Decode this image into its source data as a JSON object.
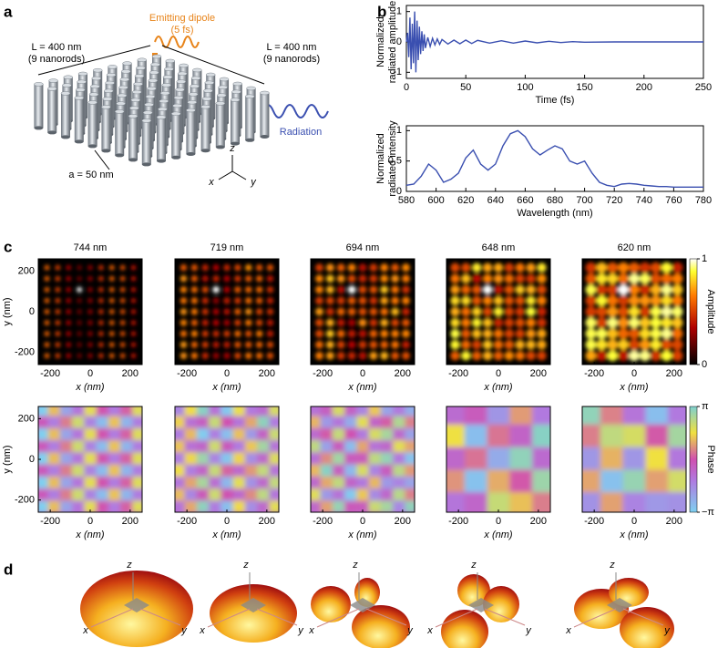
{
  "panel_labels": [
    "a",
    "b",
    "c",
    "d"
  ],
  "panel_a": {
    "dipole_label": [
      "Emitting dipole",
      "(5 fs)"
    ],
    "left_size": [
      "L = 400 nm",
      "(9 nanorods)"
    ],
    "right_size": [
      "L = 400 nm",
      "(9 nanorods)"
    ],
    "radiation": "Radiation",
    "spacing": "a = 50 nm",
    "axes": [
      "x",
      "y",
      "z"
    ]
  },
  "chart_data": [
    {
      "type": "line",
      "color": "#3a4fb0",
      "x_label": "Time (fs)",
      "y_label": [
        "Normalized",
        "radiated amplitude"
      ],
      "x": [
        0,
        1,
        2,
        3,
        4,
        5,
        6,
        7,
        8,
        9,
        10,
        11,
        12,
        13,
        14,
        15,
        16,
        18,
        20,
        22,
        24,
        26,
        28,
        30,
        35,
        40,
        45,
        50,
        55,
        60,
        70,
        80,
        90,
        100,
        110,
        120,
        130,
        140,
        150,
        175,
        200,
        250
      ],
      "values": [
        0,
        0.3,
        -0.5,
        0.8,
        -0.9,
        0.6,
        -0.7,
        1.0,
        -1.0,
        0.7,
        -0.6,
        0.5,
        -0.4,
        0.35,
        -0.3,
        0.25,
        -0.2,
        0.15,
        -0.15,
        0.12,
        -0.1,
        0.1,
        -0.08,
        0.08,
        -0.07,
        0.06,
        -0.06,
        0.06,
        -0.05,
        0.05,
        -0.04,
        0.04,
        -0.04,
        0.03,
        -0.03,
        0.02,
        -0.02,
        0.01,
        -0.01,
        0,
        0,
        0
      ],
      "xlim": [
        0,
        250
      ],
      "ylim": [
        -1.2,
        1.2
      ],
      "xticks": [
        0,
        50,
        100,
        150,
        200,
        250
      ],
      "yticks": [
        -1,
        0,
        1
      ]
    },
    {
      "type": "line",
      "color": "#3a4fb0",
      "x_label": "Wavelength (nm)",
      "y_label": [
        "Normalized",
        "radiated intensity"
      ],
      "x": [
        580,
        585,
        590,
        595,
        600,
        605,
        610,
        615,
        620,
        625,
        630,
        635,
        640,
        645,
        650,
        655,
        660,
        665,
        670,
        675,
        680,
        685,
        690,
        695,
        700,
        705,
        710,
        715,
        720,
        725,
        730,
        735,
        740,
        745,
        750,
        755,
        760,
        765,
        770,
        775,
        780
      ],
      "values": [
        0.1,
        0.12,
        0.25,
        0.45,
        0.35,
        0.15,
        0.2,
        0.3,
        0.55,
        0.68,
        0.45,
        0.35,
        0.45,
        0.75,
        0.95,
        1.0,
        0.9,
        0.7,
        0.6,
        0.68,
        0.75,
        0.7,
        0.5,
        0.45,
        0.5,
        0.3,
        0.15,
        0.1,
        0.08,
        0.12,
        0.13,
        0.12,
        0.1,
        0.09,
        0.08,
        0.08,
        0.07,
        0.07,
        0.07,
        0.07,
        0.07
      ],
      "xlim": [
        580,
        780
      ],
      "ylim": [
        0,
        1.08
      ],
      "xticks": [
        580,
        600,
        620,
        640,
        660,
        680,
        700,
        720,
        740,
        760,
        780
      ],
      "yticks": [
        0,
        0.5,
        1
      ]
    }
  ],
  "panel_c": {
    "wavelengths": [
      "744 nm",
      "719 nm",
      "694 nm",
      "648 nm",
      "620 nm"
    ],
    "x_label": "x (nm)",
    "y_label": "y (nm)",
    "xlim": [
      -260,
      260
    ],
    "ylim": [
      -260,
      260
    ],
    "ticks": [
      -200,
      0,
      200
    ],
    "amplitude_bar": {
      "label": "Amplitude",
      "lim": [
        0,
        1
      ],
      "ticks": [
        0,
        1
      ]
    },
    "phase_bar": {
      "label": "Phase",
      "lim": [
        -3.1416,
        3.1416
      ],
      "ticks": [
        {
          "value": -3.1416,
          "label": "−π"
        },
        {
          "value": 3.1416,
          "label": "π"
        }
      ]
    }
  },
  "panel_d": {
    "axes": [
      "z",
      "x",
      "y"
    ]
  }
}
